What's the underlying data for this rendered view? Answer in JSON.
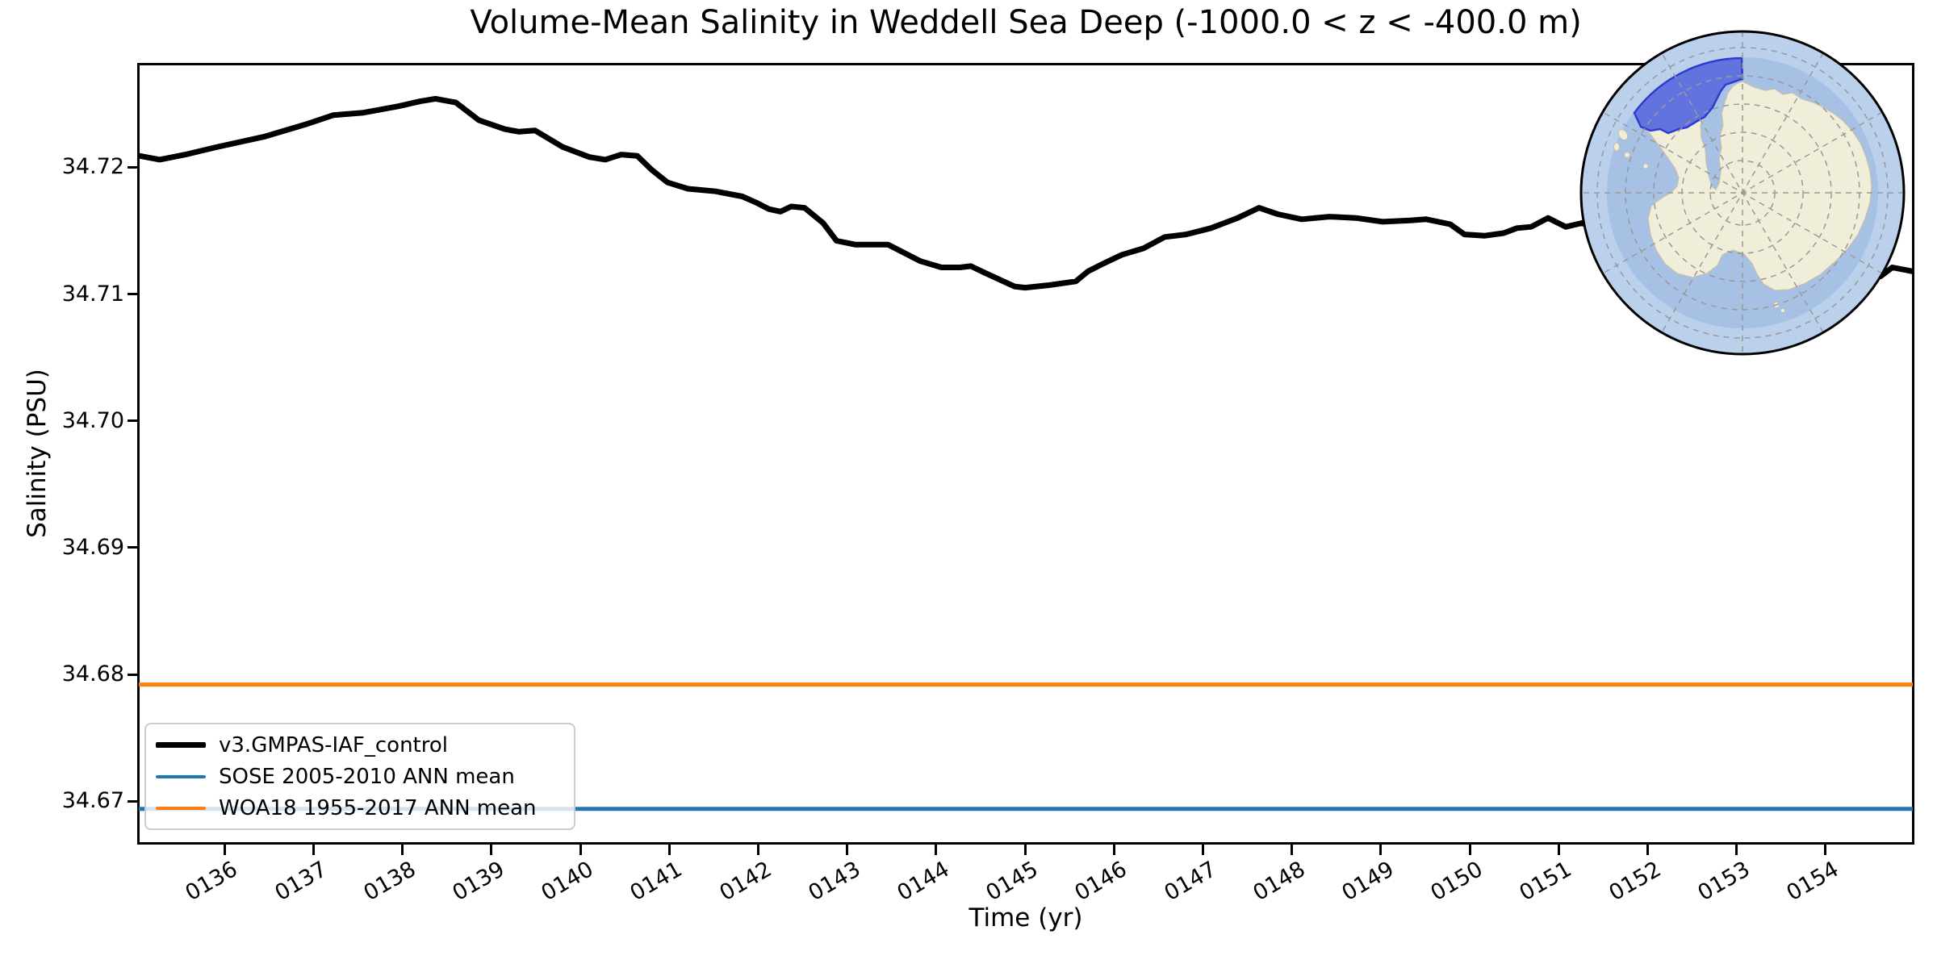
{
  "title": "Volume-Mean Salinity in Weddell Sea Deep (-1000.0 < z < -400.0 m)",
  "axes": {
    "xlabel": "Time (yr)",
    "ylabel": "Salinity (PSU)",
    "x_tick_labels": [
      "0136",
      "0137",
      "0138",
      "0139",
      "0140",
      "0141",
      "0142",
      "0143",
      "0144",
      "0145",
      "0146",
      "0147",
      "0148",
      "0149",
      "0150",
      "0151",
      "0152",
      "0153",
      "0154"
    ],
    "y_tick_labels": [
      "34.67",
      "34.68",
      "34.69",
      "34.70",
      "34.71",
      "34.72"
    ]
  },
  "legend": {
    "entries": [
      {
        "label": "v3.GMPAS-IAF_control",
        "color": "#000000",
        "thickness": 7
      },
      {
        "label": "SOSE 2005-2010 ANN mean",
        "color": "#1f77b4",
        "thickness": 4
      },
      {
        "label": "WOA18 1955-2017 ANN mean",
        "color": "#ff7f0e",
        "thickness": 4
      }
    ]
  },
  "chart_data": {
    "type": "line",
    "title": "Volume-Mean Salinity in Weddell Sea Deep (-1000.0 < z < -400.0 m)",
    "xlabel": "Time (yr)",
    "ylabel": "Salinity (PSU)",
    "xlim": [
      135.0,
      155.0
    ],
    "ylim": [
      34.6667,
      34.7281
    ],
    "grid": false,
    "legend_position": "lower left",
    "series": [
      {
        "name": "v3.GMPAS-IAF_control",
        "color": "#000000",
        "line_width": 7,
        "note": "segment t=151.3 to t=154.6 is hidden behind the inset map; values there are interpolated",
        "points": [
          [
            135.04,
            34.7209
          ],
          [
            135.27,
            34.7206
          ],
          [
            135.56,
            34.721
          ],
          [
            135.92,
            34.7216
          ],
          [
            136.44,
            34.7224
          ],
          [
            136.92,
            34.7234
          ],
          [
            137.22,
            34.7241
          ],
          [
            137.56,
            34.7243
          ],
          [
            137.95,
            34.7248
          ],
          [
            138.2,
            34.7252
          ],
          [
            138.37,
            34.7254
          ],
          [
            138.6,
            34.7251
          ],
          [
            138.86,
            34.7237
          ],
          [
            139.15,
            34.723
          ],
          [
            139.31,
            34.7228
          ],
          [
            139.49,
            34.7229
          ],
          [
            139.8,
            34.7216
          ],
          [
            140.1,
            34.7208
          ],
          [
            140.28,
            34.7206
          ],
          [
            140.46,
            34.721
          ],
          [
            140.64,
            34.7209
          ],
          [
            140.8,
            34.7198
          ],
          [
            140.98,
            34.7188
          ],
          [
            141.21,
            34.7183
          ],
          [
            141.52,
            34.7181
          ],
          [
            141.82,
            34.7177
          ],
          [
            141.98,
            34.7172
          ],
          [
            142.12,
            34.7167
          ],
          [
            142.25,
            34.7165
          ],
          [
            142.37,
            34.7169
          ],
          [
            142.52,
            34.7168
          ],
          [
            142.73,
            34.7156
          ],
          [
            142.88,
            34.7142
          ],
          [
            143.09,
            34.7139
          ],
          [
            143.46,
            34.7139
          ],
          [
            143.82,
            34.7126
          ],
          [
            144.06,
            34.7121
          ],
          [
            144.27,
            34.7121
          ],
          [
            144.39,
            34.7122
          ],
          [
            144.54,
            34.7117
          ],
          [
            144.88,
            34.7106
          ],
          [
            145.0,
            34.7105
          ],
          [
            145.27,
            34.7107
          ],
          [
            145.57,
            34.711
          ],
          [
            145.71,
            34.7118
          ],
          [
            145.88,
            34.7124
          ],
          [
            146.09,
            34.7131
          ],
          [
            146.33,
            34.7136
          ],
          [
            146.57,
            34.7145
          ],
          [
            146.81,
            34.7147
          ],
          [
            147.09,
            34.7152
          ],
          [
            147.39,
            34.716
          ],
          [
            147.63,
            34.7168
          ],
          [
            147.84,
            34.7163
          ],
          [
            148.11,
            34.7159
          ],
          [
            148.42,
            34.7161
          ],
          [
            148.72,
            34.716
          ],
          [
            149.02,
            34.7157
          ],
          [
            149.33,
            34.7158
          ],
          [
            149.51,
            34.7159
          ],
          [
            149.78,
            34.7155
          ],
          [
            149.94,
            34.7147
          ],
          [
            150.17,
            34.7146
          ],
          [
            150.38,
            34.7148
          ],
          [
            150.53,
            34.7152
          ],
          [
            150.69,
            34.7153
          ],
          [
            150.88,
            34.716
          ],
          [
            151.08,
            34.7153
          ],
          [
            151.26,
            34.7156
          ],
          [
            151.6,
            34.7148
          ],
          [
            152.0,
            34.714
          ],
          [
            152.5,
            34.7133
          ],
          [
            153.0,
            34.7127
          ],
          [
            153.5,
            34.712
          ],
          [
            154.0,
            34.7114
          ],
          [
            154.3,
            34.7111
          ],
          [
            154.62,
            34.7114
          ],
          [
            154.75,
            34.7121
          ],
          [
            154.97,
            34.7118
          ]
        ]
      },
      {
        "name": "SOSE 2005-2010 ANN mean",
        "type": "hline",
        "color": "#1f77b4",
        "line_width": 5,
        "value": 34.6694
      },
      {
        "name": "WOA18 1955-2017 ANN mean",
        "type": "hline",
        "color": "#ff7f0e",
        "line_width": 5,
        "value": 34.6792
      }
    ],
    "inset_map": {
      "description": "South polar stereographic map of Antarctica, top right; Weddell Sea region highlighted as a blue annular wedge north-west of the Antarctic Peninsula",
      "highlight_color": "#5b6adf",
      "highlight_border_color": "#2e3bd0",
      "ocean_color": "#a6c1e4",
      "outer_ocean_color": "#bad0eb",
      "land_color": "#f0edd9",
      "graticule_color": "#999999"
    }
  }
}
